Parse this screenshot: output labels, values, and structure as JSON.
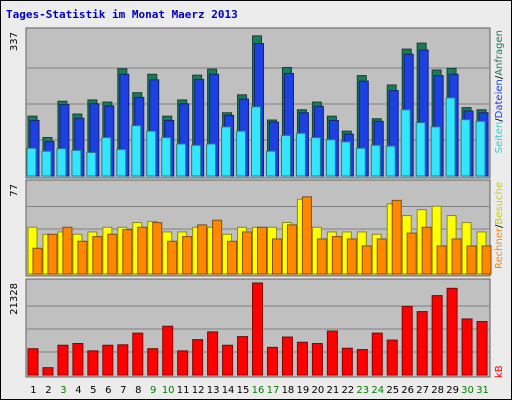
{
  "chart_data": {
    "type": "bar",
    "title": "Tages-Statistik im Monat Maerz 2013",
    "categories": [
      "1",
      "2",
      "3",
      "4",
      "5",
      "6",
      "7",
      "8",
      "9",
      "10",
      "11",
      "12",
      "13",
      "14",
      "15",
      "16",
      "17",
      "18",
      "19",
      "20",
      "21",
      "22",
      "23",
      "24",
      "25",
      "26",
      "27",
      "28",
      "29",
      "30",
      "31"
    ],
    "weekend_days": [
      "3",
      "9",
      "10",
      "16",
      "17",
      "23",
      "24",
      "30",
      "31"
    ],
    "panels": [
      {
        "id": "top",
        "ymax_label": "337",
        "ymax": 337,
        "series": [
          {
            "name": "Anfragen",
            "color": "#1a7a5e",
            "values": [
              140,
              90,
              175,
              145,
              178,
              173,
              251,
              195,
              238,
              140,
              178,
              236,
              250,
              148,
              190,
              328,
              131,
              254,
              155,
              173,
              140,
              105,
              235,
              134,
              213,
              297,
              311,
              248,
              252,
              160,
              155
            ]
          },
          {
            "name": "Dateien",
            "color": "#1e40e0",
            "values": [
              130,
              81,
              167,
              135,
              169,
              164,
              238,
              184,
              225,
              130,
              169,
              226,
              238,
              142,
              180,
              310,
              126,
              240,
              148,
              163,
              130,
              98,
              222,
              128,
              200,
              285,
              295,
              235,
              238,
              152,
              148
            ]
          },
          {
            "name": "Seiten",
            "color": "#33e5ff",
            "values": [
              65,
              58,
              64,
              60,
              55,
              90,
              62,
              118,
              105,
              90,
              75,
              72,
              75,
              115,
              105,
              162,
              58,
              95,
              100,
              90,
              85,
              80,
              65,
              72,
              70,
              155,
              125,
              115,
              183,
              132,
              128
            ]
          }
        ]
      },
      {
        "id": "middle",
        "ymax_label": "77",
        "ymax": 77,
        "series": [
          {
            "name": "Besuche",
            "color": "#ffff00",
            "values": [
              40,
              34,
              36,
              34,
              36,
              40,
              40,
              44,
              45,
              36,
              36,
              40,
              40,
              34,
              40,
              40,
              40,
              44,
              64,
              40,
              36,
              36,
              36,
              34,
              60,
              50,
              55,
              58,
              50,
              44,
              36
            ]
          },
          {
            "name": "Rechner",
            "color": "#ff8800",
            "values": [
              22,
              34,
              40,
              28,
              32,
              34,
              38,
              40,
              44,
              28,
              32,
              42,
              46,
              28,
              36,
              40,
              30,
              42,
              66,
              30,
              32,
              30,
              24,
              30,
              63,
              35,
              40,
              24,
              30,
              24,
              24
            ]
          }
        ]
      },
      {
        "id": "bottom",
        "ymax_label": "21328",
        "ymax": 21328,
        "series": [
          {
            "name": "kB",
            "color": "#ff0000",
            "values": [
              6100,
              1700,
              6900,
              7300,
              5600,
              6900,
              7000,
              9700,
              6100,
              11300,
              5600,
              8200,
              10000,
              6900,
              8900,
              21328,
              6400,
              8800,
              7600,
              7300,
              10200,
              6200,
              5900,
              9700,
              8100,
              15900,
              14700,
              18400,
              20100,
              13000,
              12400
            ]
          }
        ]
      }
    ],
    "side_labels": {
      "top": [
        {
          "text": "Anfragen",
          "color": "#1a7a5e"
        },
        {
          "text": "Dateien",
          "color": "#1e40e0"
        },
        {
          "text": "Seiten",
          "color": "#33cccc"
        }
      ],
      "middle": [
        {
          "text": "Besuche",
          "color": "#cccc00"
        },
        {
          "text": "Rechner",
          "color": "#ff8800"
        }
      ],
      "bottom": [
        {
          "text": "kB",
          "color": "#ff0000"
        }
      ]
    },
    "colors": {
      "weekday_tick": "#000000",
      "weekend_tick": "#008000",
      "panel_bg": "#c0c0c0",
      "grid": "#808080"
    }
  }
}
